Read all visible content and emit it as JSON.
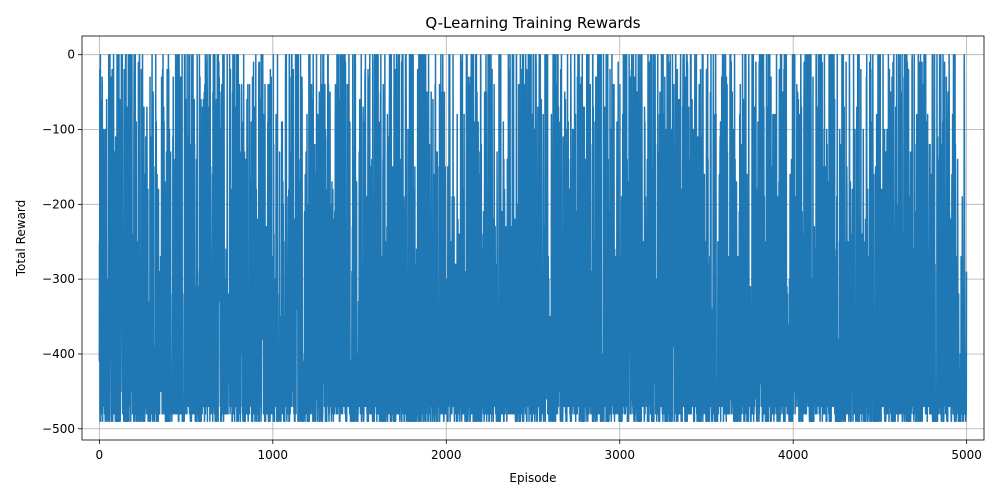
{
  "chart_data": {
    "type": "line",
    "title": "Q-Learning Training Rewards",
    "xlabel": "Episode",
    "ylabel": "Total Reward",
    "xlim": [
      -100,
      5100
    ],
    "ylim": [
      -515,
      25
    ],
    "x_ticks": [
      0,
      1000,
      2000,
      3000,
      4000,
      5000
    ],
    "x_tick_labels": [
      "0",
      "1000",
      "2000",
      "3000",
      "4000",
      "5000"
    ],
    "y_ticks": [
      0,
      -100,
      -200,
      -300,
      -400,
      -500
    ],
    "y_tick_labels": [
      "0",
      "−100",
      "−200",
      "−300",
      "−400",
      "−500"
    ],
    "grid": true,
    "series_color": "#1f77b4",
    "series": [
      {
        "approximate": true,
        "episodes": 5000,
        "episode_start": 0,
        "reward_min": -490,
        "reward_max": 0,
        "typical_low": -480,
        "typical_high": -250,
        "seed": 7
      }
    ]
  }
}
